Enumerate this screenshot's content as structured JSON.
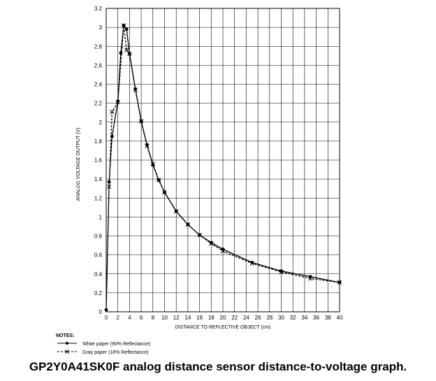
{
  "caption": "GP2Y0A41SK0F analog distance sensor distance-to-voltage graph.",
  "notes": {
    "heading": "NOTES:",
    "entries": [
      "White paper (90% Reflectance)",
      "Gray paper (18% Reflectance)"
    ]
  },
  "chart_data": {
    "type": "line",
    "title": "",
    "xlabel": "DISTANCE TO REFLECTIVE OBJECT (cm)",
    "ylabel": "ANALOG VOLTAGE OUTPUT (V)",
    "xlim": [
      0,
      40
    ],
    "ylim": [
      0,
      3.2
    ],
    "x_ticks": [
      0,
      2,
      4,
      6,
      8,
      10,
      12,
      14,
      16,
      18,
      20,
      22,
      24,
      26,
      28,
      30,
      32,
      34,
      36,
      38,
      40
    ],
    "y_ticks": [
      0,
      0.2,
      0.4,
      0.6,
      0.8,
      1,
      1.2,
      1.4,
      1.6,
      1.8,
      2,
      2.2,
      2.4,
      2.6,
      2.8,
      3,
      3.2
    ],
    "grid": true,
    "legend_position": "below",
    "series": [
      {
        "name": "White paper (90% Reflectance)",
        "line_style": "solid",
        "marker": "dot",
        "color": "#000000",
        "x": [
          0,
          0.5,
          1,
          2,
          2.5,
          3,
          3.5,
          4,
          5,
          6,
          7,
          8,
          9,
          10,
          12,
          14,
          16,
          18,
          20,
          25,
          30,
          35,
          40
        ],
        "y": [
          0.02,
          1.37,
          1.85,
          2.22,
          2.73,
          3.02,
          2.98,
          2.72,
          2.35,
          2.01,
          1.76,
          1.55,
          1.39,
          1.26,
          1.06,
          0.92,
          0.81,
          0.73,
          0.66,
          0.52,
          0.43,
          0.37,
          0.31
        ]
      },
      {
        "name": "Gray paper (18% Reflectance)",
        "line_style": "dashed",
        "marker": "x",
        "color": "#000000",
        "x": [
          0.5,
          1,
          2,
          3,
          3.5,
          4,
          5,
          6,
          7,
          8,
          9,
          10,
          12,
          14,
          16,
          18,
          20,
          25,
          30,
          35,
          40
        ],
        "y": [
          1.32,
          2.11,
          2.21,
          3.02,
          2.76,
          2.72,
          2.34,
          2.01,
          1.75,
          1.56,
          1.39,
          1.26,
          1.06,
          0.92,
          0.81,
          0.72,
          0.64,
          0.51,
          0.42,
          0.35,
          0.31
        ]
      }
    ]
  }
}
